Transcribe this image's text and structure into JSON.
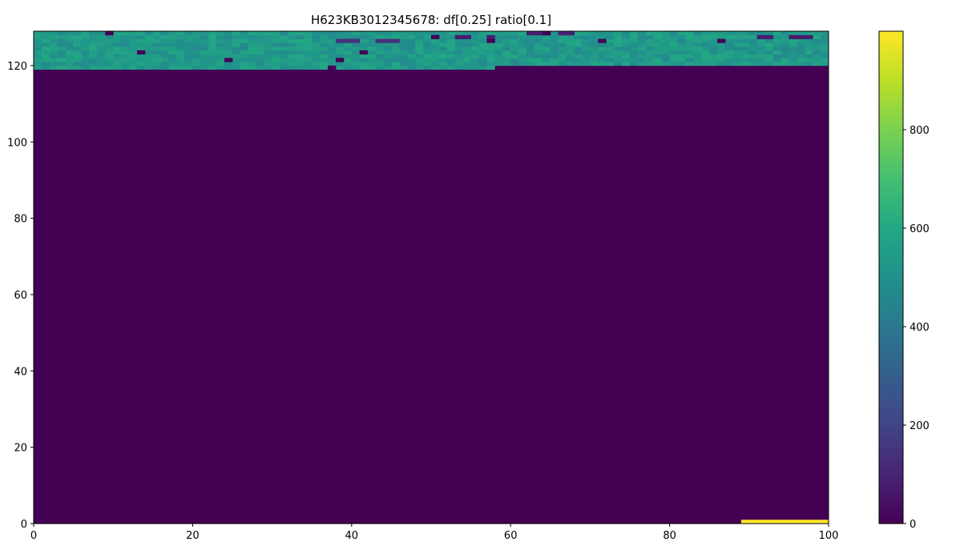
{
  "chart_data": {
    "type": "heatmap",
    "title": "H623KB3012345678: df[0.25] ratio[0.1]",
    "xlabel": "",
    "ylabel": "",
    "xlim": [
      0,
      100
    ],
    "ylim": [
      0,
      129
    ],
    "xticks": [
      0,
      20,
      40,
      60,
      80,
      100
    ],
    "yticks": [
      0,
      20,
      40,
      60,
      80,
      100,
      120
    ],
    "colormap": "viridis",
    "colorbar": {
      "range": [
        0,
        1000
      ],
      "ticks": [
        0,
        200,
        400,
        600,
        800
      ]
    },
    "grid": false,
    "background_value": 0,
    "regions": [
      {
        "name": "noise-band-left",
        "x": [
          0,
          58
        ],
        "y": [
          119,
          129
        ],
        "value_range": [
          470,
          600
        ]
      },
      {
        "name": "noise-band-right",
        "x": [
          58,
          100
        ],
        "y": [
          120,
          129
        ],
        "value_range": [
          470,
          600
        ]
      },
      {
        "name": "hot-strip",
        "x": [
          89,
          100
        ],
        "y": [
          0,
          1
        ],
        "value": 1000
      }
    ],
    "sparse_cells": [
      {
        "x": 9,
        "y": 128,
        "value": 0
      },
      {
        "x": 13,
        "y": 123,
        "value": 0
      },
      {
        "x": 24,
        "y": 121,
        "value": 0
      },
      {
        "x": 37,
        "y": 119,
        "value": 0
      },
      {
        "x": 38,
        "y": 121,
        "value": 0
      },
      {
        "x": 41,
        "y": 123,
        "value": 0
      },
      {
        "x": 50,
        "y": 127,
        "value": 0
      },
      {
        "x": 57,
        "y": 126,
        "value": 0
      },
      {
        "x": 64,
        "y": 128,
        "value": 0
      },
      {
        "x": 71,
        "y": 126,
        "value": 0
      },
      {
        "x": 86,
        "y": 126,
        "value": 0
      }
    ],
    "sparse_low_runs": [
      {
        "x": [
          5,
          7
        ],
        "y": 128,
        "value": 80
      },
      {
        "x": [
          50,
          58
        ],
        "y": 127,
        "value": 80
      },
      {
        "x": [
          61,
          68
        ],
        "y": 128,
        "value": 90
      },
      {
        "x": [
          90,
          100
        ],
        "y": 127,
        "value": 80
      },
      {
        "x": [
          38,
          46
        ],
        "y": 126,
        "value": 140
      }
    ]
  }
}
